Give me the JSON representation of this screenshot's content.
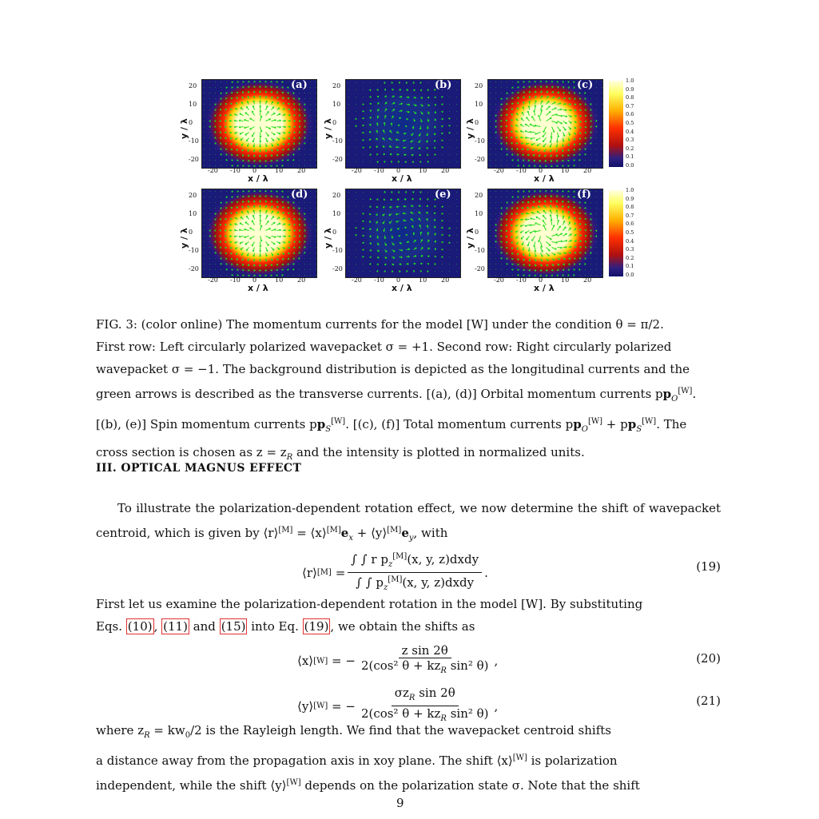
{
  "figure": {
    "panels": [
      {
        "label": "(a)",
        "type": "orbital"
      },
      {
        "label": "(b)",
        "type": "spin"
      },
      {
        "label": "(c)",
        "type": "total"
      },
      {
        "label": "(d)",
        "type": "orbital"
      },
      {
        "label": "(e)",
        "type": "spin"
      },
      {
        "label": "(f)",
        "type": "total"
      }
    ],
    "y_ticks": [
      "20",
      "10",
      "0",
      "-10",
      "-20"
    ],
    "x_ticks": [
      "-20",
      "-10",
      "0",
      "10",
      "20"
    ],
    "xlabel": "x / λ",
    "ylabel": "y / λ",
    "colorbar_ticks": [
      "1.0",
      "0.9",
      "0.8",
      "0.7",
      "0.6",
      "0.5",
      "0.4",
      "0.3",
      "0.2",
      "0.1",
      "0.0"
    ],
    "colors": {
      "background": "#1a1a78",
      "hot": "#ff2a00",
      "core": "#ffffd0",
      "arrows": "#22dd22"
    }
  },
  "caption": {
    "line1": "FIG. 3: (color online) The momentum currents for the model [W] under the condition θ = π/2.",
    "line2": "First row: Left circularly polarized wavepacket σ = +1. Second row: Right circularly polarized",
    "line3": "wavepacket σ = −1. The background distribution is depicted as the longitudinal currents and the",
    "line4": "green arrows is described as the transverse currents. [(a), (d)] Orbital momentum currents p",
    "line5": "[(b), (e)] Spin momentum currents p",
    "line5b": ". [(c), (f)] Total momentum currents p",
    "line5c": " + p",
    "line5d": ". The",
    "line6": "cross section is chosen as z = z",
    "line6b": " and the intensity is plotted in normalized units."
  },
  "section": {
    "heading": "III.   OPTICAL MAGNUS EFFECT"
  },
  "para1": {
    "line1": "To illustrate the polarization-dependent rotation effect, we now determine the shift of",
    "line2a": "wavepacket centroid, which is given by ⟨r⟩",
    "line2b": " = ⟨x⟩",
    "line2c": "e",
    "line2d": " + ⟨y⟩",
    "line2e": "e",
    "line2f": ", with"
  },
  "eq19": {
    "lhs": "⟨r⟩",
    "sup": "[M]",
    "num": "∫ ∫ r p",
    "num_rest": "(x, y, z)dxdy",
    "den": "∫ ∫ p",
    "den_rest": "(x, y, z)dxdy",
    "number": "(19)"
  },
  "para2": {
    "line1": "First let us examine the polarization-dependent rotation in the model [W]. By substituting",
    "eqs_prefix": "Eqs. ",
    "ref10": "(10)",
    "ref11": "(11)",
    "ref15": "(15)",
    "ref19": "(19)",
    "and": " and ",
    "into": " into Eq. ",
    "suffix": ", we obtain the shifts as"
  },
  "eq20": {
    "lhs": "⟨x⟩",
    "sup": "[W]",
    "num": "z sin 2θ",
    "den": "2(cos² θ + kz",
    "den_rest": " sin² θ)",
    "number": "(20)"
  },
  "eq21": {
    "lhs": "⟨y⟩",
    "sup": "[W]",
    "num": "σz",
    "num_rest": " sin 2θ",
    "den": "2(cos² θ + kz",
    "den_rest": " sin² θ)",
    "number": "(21)"
  },
  "para3": {
    "line1a": "where z",
    "line1b": " = kw",
    "line1c": "/2 is the Rayleigh length.  We find that the wavepacket centroid shifts",
    "line2": "a distance away from the propagation axis in xoy plane.  The shift ⟨x⟩",
    "line2b": " is polarization",
    "line3a": "independent, while the shift ⟨y⟩",
    "line3b": " depends on the polarization state σ. Note that the shift"
  },
  "page_number": "9"
}
